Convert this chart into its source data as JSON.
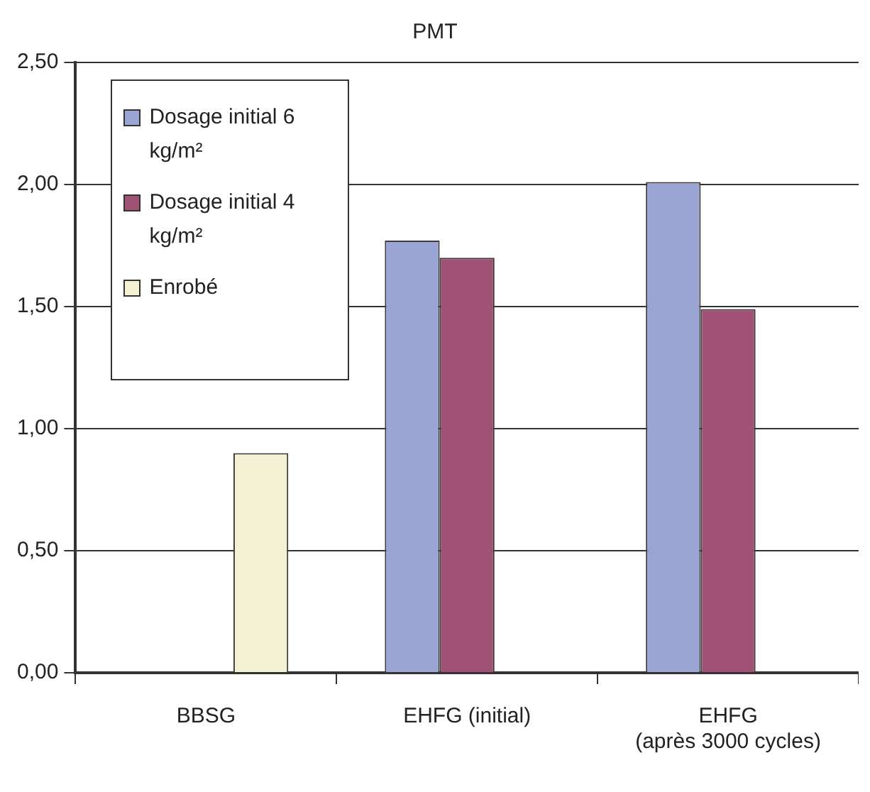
{
  "chart_data": {
    "type": "bar",
    "title": "PMT",
    "categories": [
      "BBSG",
      "EHFG (initial)",
      "EHFG\n(après 3000 cycles)"
    ],
    "series": [
      {
        "name": "Dosage initial 6 kg/m²",
        "color": "#9aa5d4",
        "values": [
          null,
          1.77,
          2.01
        ]
      },
      {
        "name": "Dosage initial 4 kg/m²",
        "color": "#a05276",
        "values": [
          null,
          1.7,
          1.49
        ]
      },
      {
        "name": "Enrobé",
        "color": "#f4f2d4",
        "values": [
          0.9,
          null,
          null
        ]
      }
    ],
    "ylim": [
      0,
      2.5
    ],
    "yticks": [
      {
        "value": 0,
        "label": "0,00"
      },
      {
        "value": 0.5,
        "label": "0,50"
      },
      {
        "value": 1,
        "label": "1,00"
      },
      {
        "value": 1.5,
        "label": "1,50"
      },
      {
        "value": 2,
        "label": "2,00"
      },
      {
        "value": 2.5,
        "label": "2,50"
      }
    ],
    "grid": "y",
    "legend": "top left"
  }
}
